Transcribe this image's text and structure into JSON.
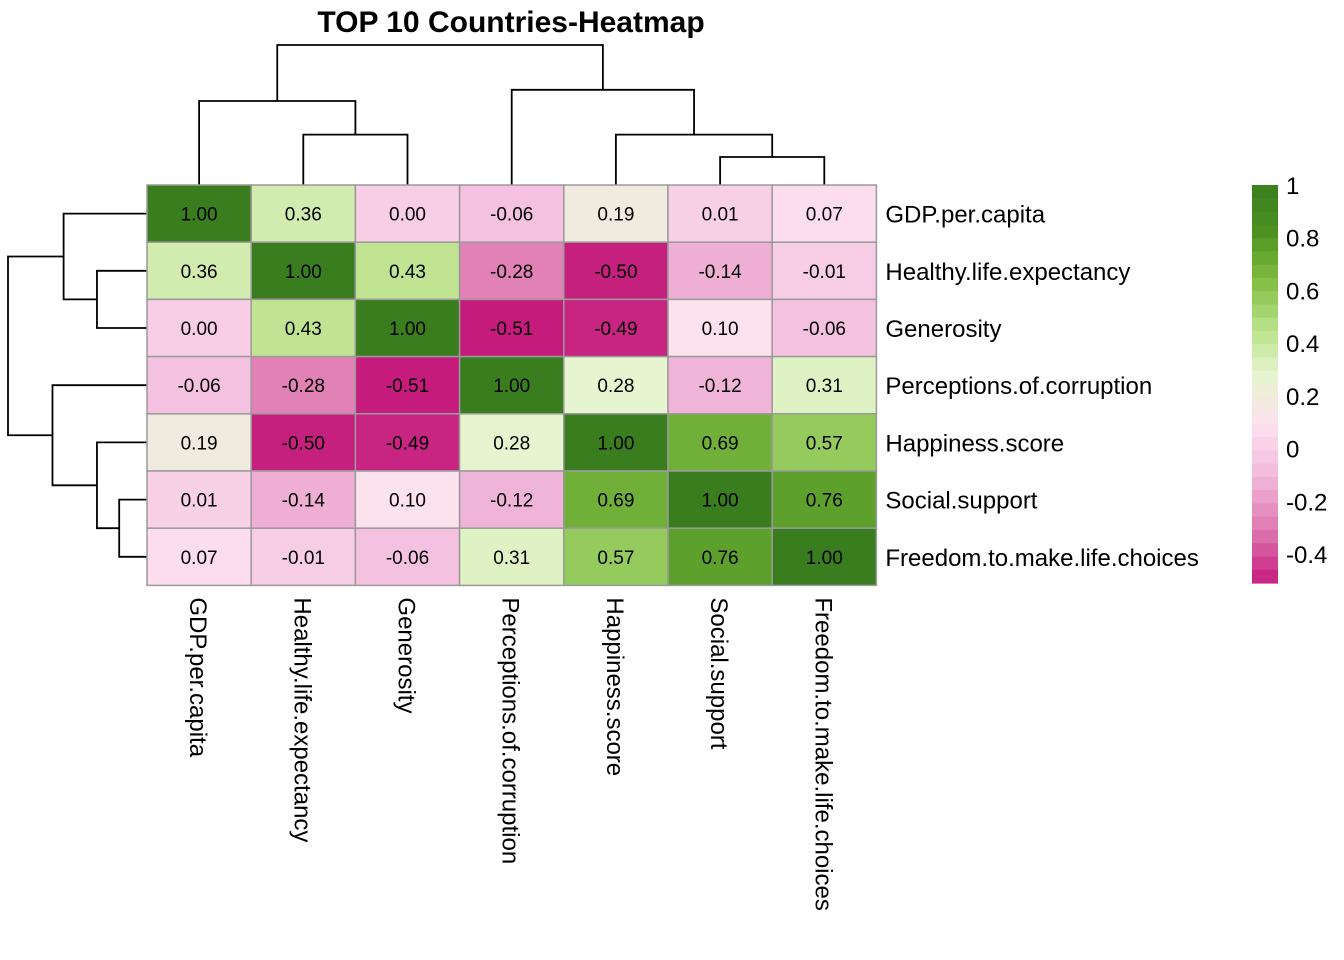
{
  "chart_data": {
    "type": "heatmap",
    "title": "TOP 10 Countries-Heatmap",
    "row_labels": [
      "GDP.per.capita",
      "Healthy.life.expectancy",
      "Generosity",
      "Perceptions.of.corruption",
      "Happiness.score",
      "Social.support",
      "Freedom.to.make.life.choices"
    ],
    "col_labels": [
      "GDP.per.capita",
      "Healthy.life.expectancy",
      "Generosity",
      "Perceptions.of.corruption",
      "Happiness.score",
      "Social.support",
      "Freedom.to.make.life.choices"
    ],
    "values": [
      [
        1.0,
        0.36,
        0.0,
        -0.06,
        0.19,
        0.01,
        0.07
      ],
      [
        0.36,
        1.0,
        0.43,
        -0.28,
        -0.5,
        -0.14,
        -0.01
      ],
      [
        0.0,
        0.43,
        1.0,
        -0.51,
        -0.49,
        0.1,
        -0.06
      ],
      [
        -0.06,
        -0.28,
        -0.51,
        1.0,
        0.28,
        -0.12,
        0.31
      ],
      [
        0.19,
        -0.5,
        -0.49,
        0.28,
        1.0,
        0.69,
        0.57
      ],
      [
        0.01,
        -0.14,
        0.1,
        -0.12,
        0.69,
        1.0,
        0.76
      ],
      [
        0.07,
        -0.01,
        -0.06,
        0.31,
        0.57,
        0.76,
        1.0
      ]
    ],
    "number_format": "two decimals",
    "colorscale": {
      "min": -0.51,
      "mid": 0.28,
      "max": 1.0,
      "colors": [
        "#c51b7d",
        "#de77ae",
        "#f1b6da",
        "#fde0ef",
        "#e6f5d0",
        "#b8e186",
        "#7fbc41",
        "#4d9221",
        "#3a7d1e"
      ]
    },
    "legend": {
      "position": "right",
      "ticks": [
        1,
        0.8,
        0.6,
        0.4,
        0.2,
        0,
        -0.2,
        -0.4
      ],
      "tick_labels": [
        "1",
        "0.8",
        "0.6",
        "0.4",
        "0.2",
        "0",
        "-0.2",
        "-0.4"
      ],
      "range": [
        -0.51,
        1.0
      ],
      "steps": 30
    },
    "dendrogram": {
      "leaves_order": [
        0,
        1,
        2,
        3,
        4,
        5,
        6
      ],
      "merges": [
        {
          "left": "leaf:5",
          "right": "leaf:6",
          "height": 0.25
        },
        {
          "left": "leaf:4",
          "right": "node:0",
          "height": 0.45
        },
        {
          "left": "leaf:3",
          "right": "node:1",
          "height": 0.85
        },
        {
          "left": "leaf:1",
          "right": "leaf:2",
          "height": 0.45
        },
        {
          "left": "leaf:0",
          "right": "node:3",
          "height": 0.75
        },
        {
          "left": "node:4",
          "right": "node:2",
          "height": 1.25
        }
      ]
    }
  }
}
